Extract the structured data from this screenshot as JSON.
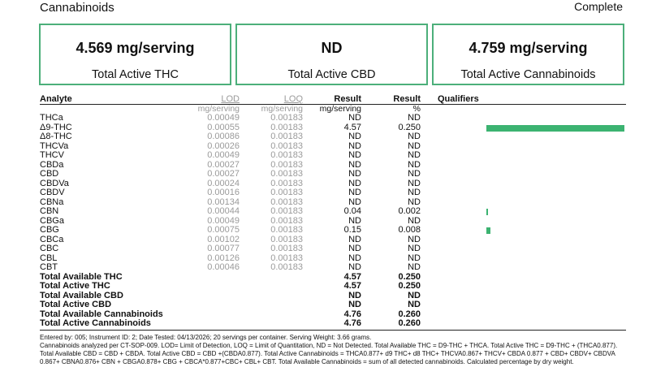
{
  "header": {
    "title": "Cannabinoids",
    "status": "Complete"
  },
  "summary": [
    {
      "value": "4.569 mg/serving",
      "label": "Total Active THC"
    },
    {
      "value": "ND",
      "label": "Total Active CBD"
    },
    {
      "value": "4.759 mg/serving",
      "label": "Total Active Cannabinoids"
    }
  ],
  "columns": {
    "analyte": "Analyte",
    "lod": "LOD",
    "loq": "LOQ",
    "result": "Result",
    "result_pct": "Result",
    "qualifiers": "Qualifiers"
  },
  "units": {
    "lod": "mg/serving",
    "loq": "mg/serving",
    "result": "mg/serving",
    "result_pct": "%"
  },
  "rows": [
    {
      "name": "THCa",
      "lod": "0.00049",
      "loq": "0.00183",
      "result": "ND",
      "pct": "ND",
      "bar": 0
    },
    {
      "name": "Δ9-THC",
      "lod": "0.00055",
      "loq": "0.00183",
      "result": "4.57",
      "pct": "0.250",
      "bar": 0.25
    },
    {
      "name": "Δ8-THC",
      "lod": "0.00086",
      "loq": "0.00183",
      "result": "ND",
      "pct": "ND",
      "bar": 0
    },
    {
      "name": "THCVa",
      "lod": "0.00026",
      "loq": "0.00183",
      "result": "ND",
      "pct": "ND",
      "bar": 0
    },
    {
      "name": "THCV",
      "lod": "0.00049",
      "loq": "0.00183",
      "result": "ND",
      "pct": "ND",
      "bar": 0
    },
    {
      "name": "CBDa",
      "lod": "0.00027",
      "loq": "0.00183",
      "result": "ND",
      "pct": "ND",
      "bar": 0
    },
    {
      "name": "CBD",
      "lod": "0.00027",
      "loq": "0.00183",
      "result": "ND",
      "pct": "ND",
      "bar": 0
    },
    {
      "name": "CBDVa",
      "lod": "0.00024",
      "loq": "0.00183",
      "result": "ND",
      "pct": "ND",
      "bar": 0
    },
    {
      "name": "CBDV",
      "lod": "0.00016",
      "loq": "0.00183",
      "result": "ND",
      "pct": "ND",
      "bar": 0
    },
    {
      "name": "CBNa",
      "lod": "0.00134",
      "loq": "0.00183",
      "result": "ND",
      "pct": "ND",
      "bar": 0
    },
    {
      "name": "CBN",
      "lod": "0.00044",
      "loq": "0.00183",
      "result": "0.04",
      "pct": "0.002",
      "bar": 0.002
    },
    {
      "name": "CBGa",
      "lod": "0.00049",
      "loq": "0.00183",
      "result": "ND",
      "pct": "ND",
      "bar": 0
    },
    {
      "name": "CBG",
      "lod": "0.00075",
      "loq": "0.00183",
      "result": "0.15",
      "pct": "0.008",
      "bar": 0.008
    },
    {
      "name": "CBCa",
      "lod": "0.00102",
      "loq": "0.00183",
      "result": "ND",
      "pct": "ND",
      "bar": 0
    },
    {
      "name": "CBC",
      "lod": "0.00077",
      "loq": "0.00183",
      "result": "ND",
      "pct": "ND",
      "bar": 0
    },
    {
      "name": "CBL",
      "lod": "0.00126",
      "loq": "0.00183",
      "result": "ND",
      "pct": "ND",
      "bar": 0
    },
    {
      "name": "CBT",
      "lod": "0.00046",
      "loq": "0.00183",
      "result": "ND",
      "pct": "ND",
      "bar": 0
    }
  ],
  "totals": [
    {
      "name": "Total Available THC",
      "result": "4.57",
      "pct": "0.250"
    },
    {
      "name": "Total Active THC",
      "result": "4.57",
      "pct": "0.250"
    },
    {
      "name": "Total Available CBD",
      "result": "ND",
      "pct": "ND"
    },
    {
      "name": "Total Active CBD",
      "result": "ND",
      "pct": "ND"
    },
    {
      "name": "Total Available Cannabinoids",
      "result": "4.76",
      "pct": "0.260"
    },
    {
      "name": "Total Active Cannabinoids",
      "result": "4.76",
      "pct": "0.260"
    }
  ],
  "footnote": {
    "line1": "Entered by: 005; Instrument ID: 2; Date Tested: 04/13/2026; 20 servings per container. Serving Weight: 3.66 grams.",
    "line2": "Cannabinoids analyzed per CT-SOP-009. LOD= Limit of Detection, LOQ = Limit of Quantitation, ND = Not Detected. Total Available THC = D9-THC + THCA. Total Active THC = D9-THC + (THCA0.877). Total Available CBD = CBD + CBDA. Total Active CBD = CBD +(CBDA0.877). Total Active Cannabinoids = THCA0.877+ d9 THC+ d8 THC+ THCVA0.867+ THCV+ CBDA 0.877 + CBD+ CBDV+ CBDVA 0.867+ CBNA0.876+ CBN + CBGA0.878+ CBG + CBCA*0.877+CBC+ CBL+ CBT. Total Available Cannabinoids = sum of all detected cannabinoids. Calculated percentage by dry weight."
  },
  "colors": {
    "accent": "#4caf7a",
    "bar": "#3cb371"
  }
}
